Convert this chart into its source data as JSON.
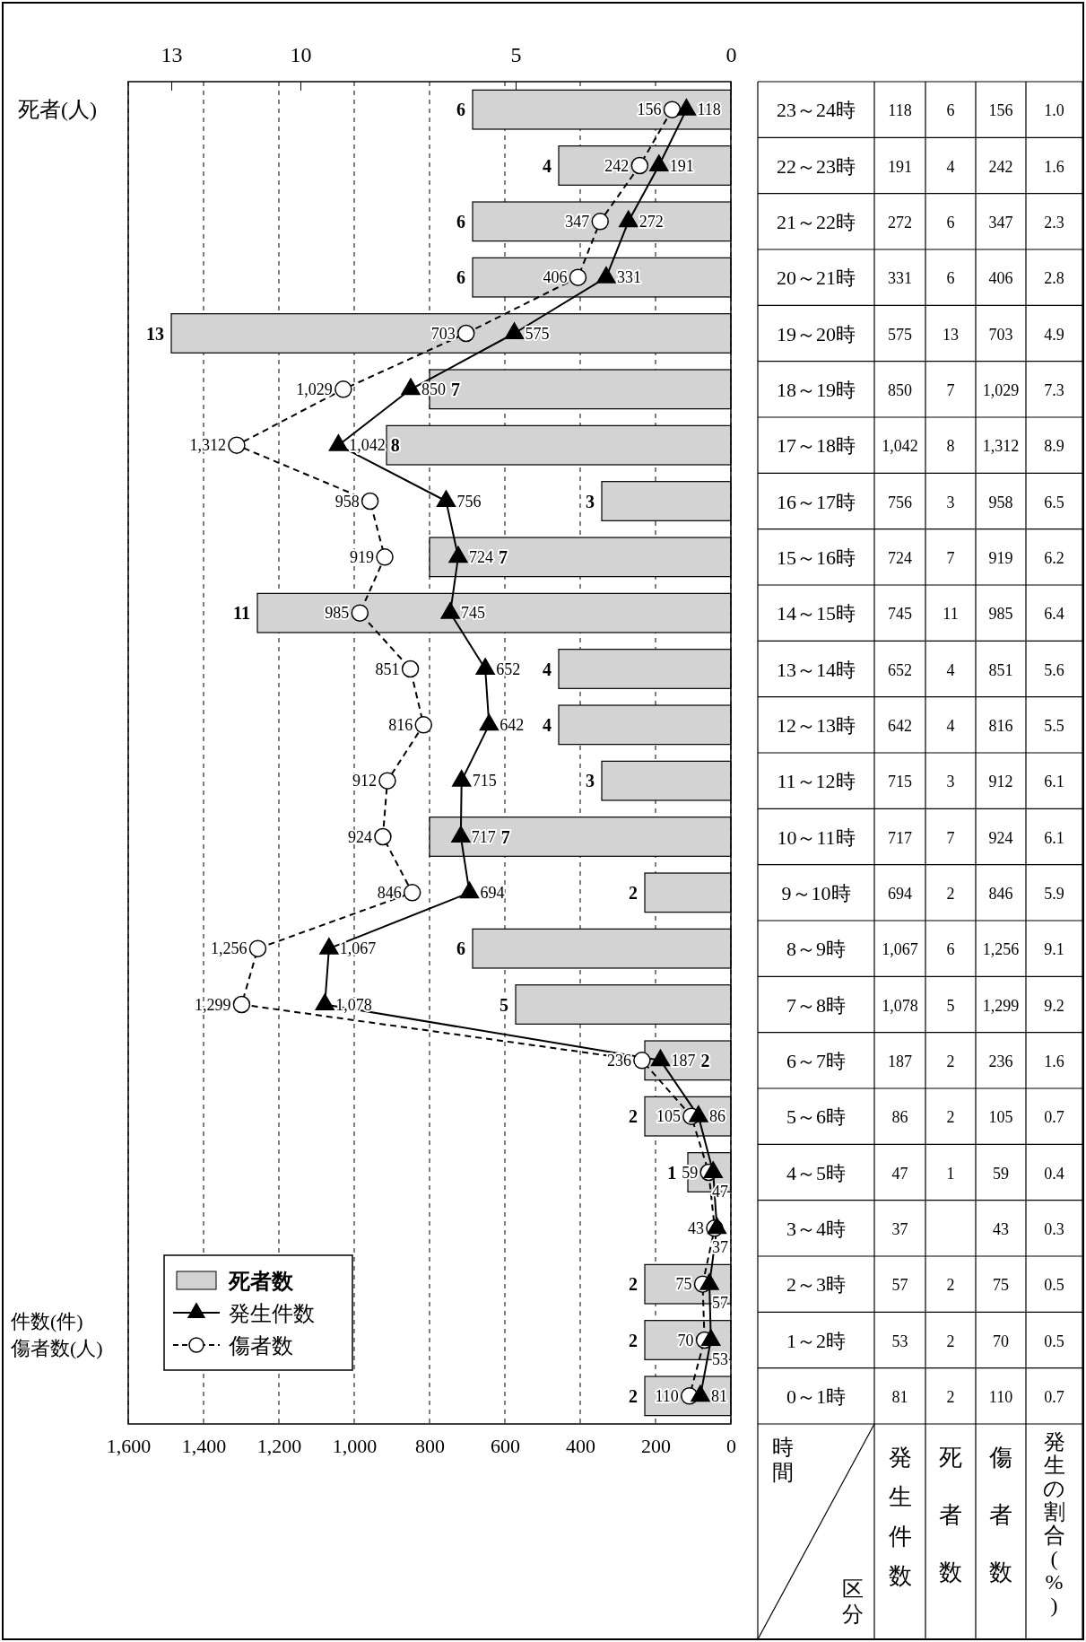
{
  "chart_data": {
    "type": "bar",
    "orientation": "horizontal",
    "xlabel": "件数(件)\n傷者数(人)",
    "x2label": "死者(人)",
    "categories": [
      "23～24時",
      "22～23時",
      "21～22時",
      "20～21時",
      "19～20時",
      "18～19時",
      "17～18時",
      "16～17時",
      "15～16時",
      "14～15時",
      "13～14時",
      "12～13時",
      "11～12時",
      "10～11時",
      "9～10時",
      "8～9時",
      "7～8時",
      "6～7時",
      "5～6時",
      "4～5時",
      "3～4時",
      "2～3時",
      "1～2時",
      "0～1時"
    ],
    "series": [
      {
        "name": "死者数",
        "axis": "x2",
        "color": "#d3d3d3",
        "values": [
          6,
          4,
          6,
          6,
          13,
          7,
          8,
          3,
          7,
          11,
          4,
          4,
          3,
          7,
          2,
          6,
          5,
          2,
          2,
          1,
          null,
          2,
          2,
          2
        ],
        "value_labels": [
          "6",
          "4",
          "6",
          "6",
          "13",
          "7",
          "8",
          "3",
          "7",
          "11",
          "4",
          "4",
          "3",
          "7",
          "2",
          "6",
          "5",
          "2",
          "2",
          "1",
          null,
          "2",
          "2",
          "2"
        ]
      },
      {
        "name": "発生件数",
        "type": "line",
        "color": "#000000",
        "marker": "triangle",
        "line_style": "solid",
        "values": [
          118,
          191,
          272,
          331,
          575,
          850,
          1042,
          756,
          724,
          745,
          652,
          642,
          715,
          717,
          694,
          1067,
          1078,
          187,
          86,
          47,
          37,
          57,
          53,
          81
        ],
        "value_labels": [
          "118",
          "191",
          "272",
          "331",
          "575",
          "850",
          "1,042",
          "756",
          "724",
          "745",
          "652",
          "642",
          "715",
          "717",
          "694",
          "1,067",
          "1,078",
          "187",
          "86",
          "47",
          "37",
          "57",
          "53",
          "81"
        ]
      },
      {
        "name": "傷者数",
        "type": "line",
        "color": "#000000",
        "marker": "circle",
        "line_style": "dashed",
        "values": [
          156,
          242,
          347,
          406,
          703,
          1029,
          1312,
          958,
          919,
          985,
          851,
          816,
          912,
          924,
          846,
          1256,
          1299,
          236,
          105,
          59,
          43,
          75,
          70,
          110
        ],
        "value_labels": [
          "156",
          "242",
          "347",
          "406",
          "703",
          "1,029",
          "1,312",
          "958",
          "919",
          "985",
          "851",
          "816",
          "912",
          "924",
          "846",
          "1,256",
          "1,299",
          "236",
          "105",
          "59",
          "43",
          "75",
          "70",
          "110"
        ]
      }
    ],
    "xlim": [
      1600,
      0
    ],
    "xticks": [
      {
        "value": 1600,
        "label": "1,600"
      },
      {
        "value": 1400,
        "label": "1,400"
      },
      {
        "value": 1200,
        "label": "1,200"
      },
      {
        "value": 1000,
        "label": "1,000"
      },
      800,
      600,
      400,
      200,
      0
    ],
    "x2lim": [
      14,
      0
    ],
    "x2ticks": [
      13,
      10,
      5,
      0
    ],
    "grid": "x",
    "legend": "bottom left",
    "annotations": [
      "時間",
      "区分",
      "発生件数",
      "死者数",
      "傷者数",
      "発生の割合(%)",
      "1.0",
      "1.6",
      "2.3",
      "2.8",
      "4.9",
      "7.3",
      "8.9",
      "6.5",
      "6.2",
      "6.4",
      "5.6",
      "5.5",
      "6.1",
      "6.1",
      "5.9",
      "9.1",
      "9.2",
      "1.6",
      "0.7",
      "0.4",
      "0.3",
      "0.5",
      "0.5",
      "0.7"
    ]
  }
}
